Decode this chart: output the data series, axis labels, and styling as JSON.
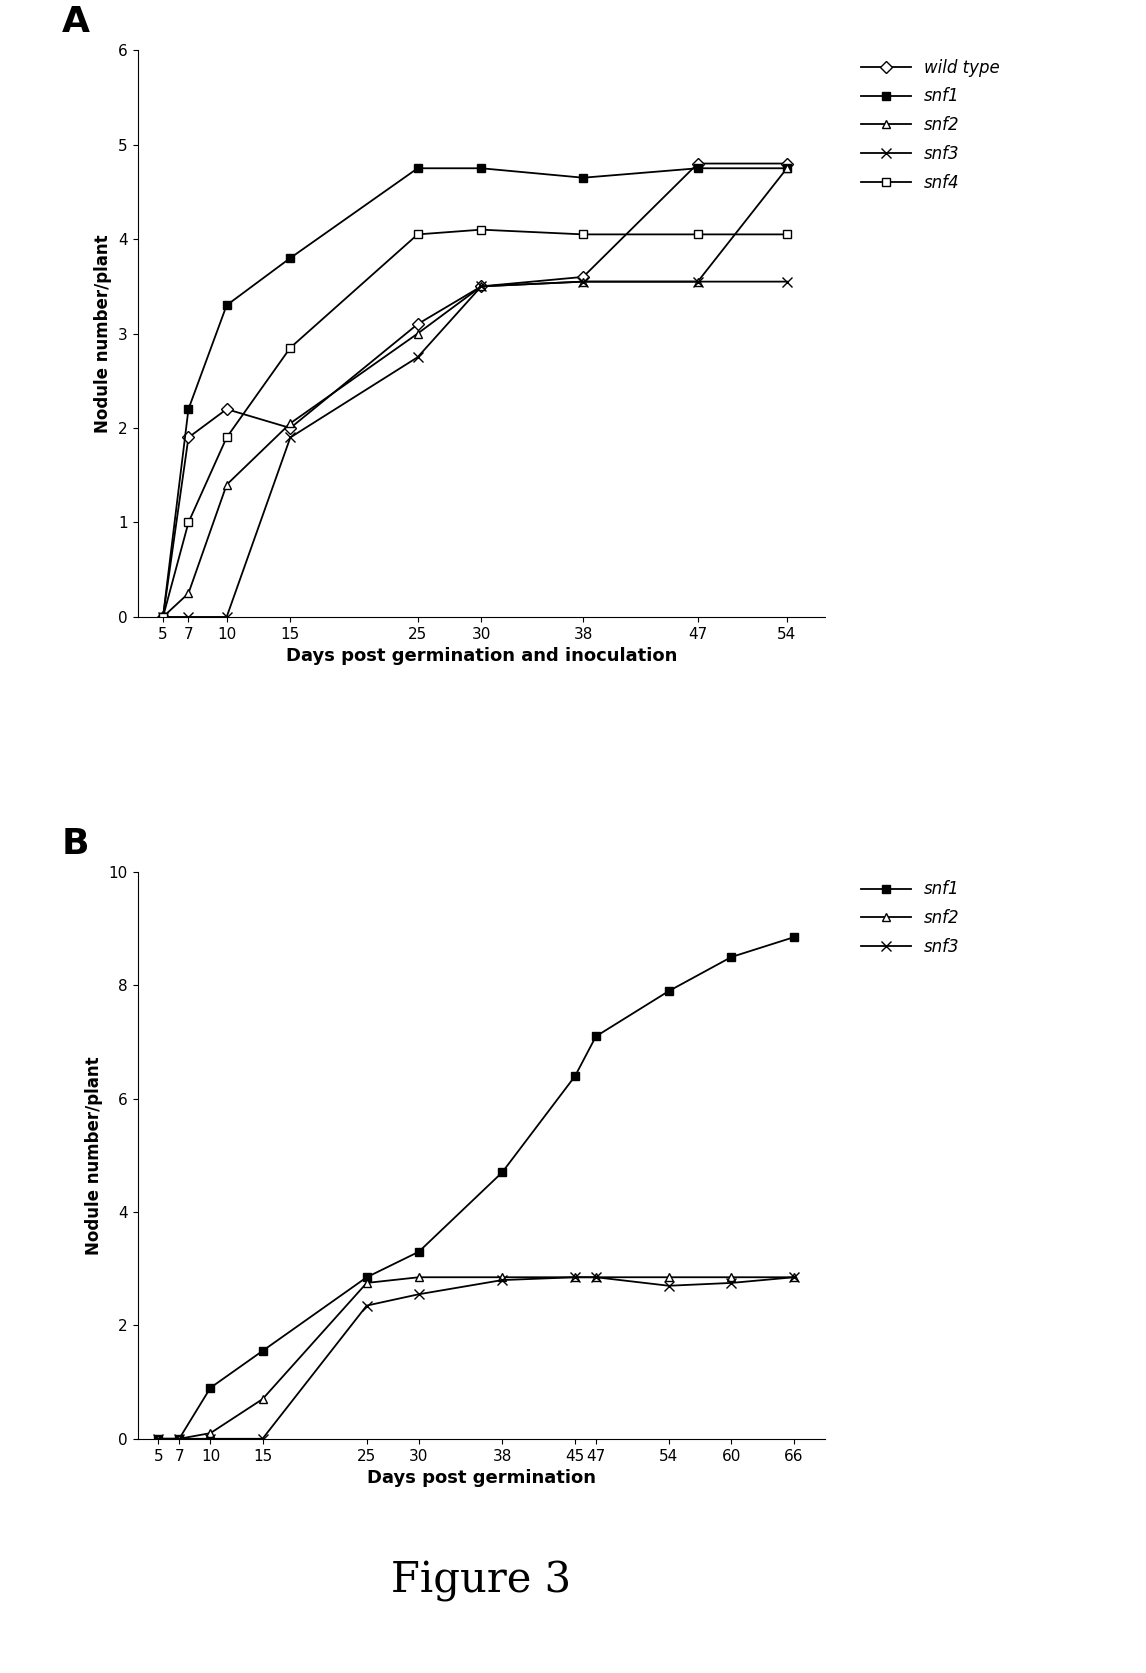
{
  "panel_A": {
    "title": "A",
    "xlabel": "Days post germination and inoculation",
    "ylabel": "Nodule number/plant",
    "xlim": [
      3,
      57
    ],
    "ylim": [
      0,
      6
    ],
    "yticks": [
      0,
      1,
      2,
      3,
      4,
      5,
      6
    ],
    "xticks": [
      5,
      7,
      10,
      15,
      25,
      30,
      38,
      47,
      54
    ],
    "series": [
      {
        "label": "wild type",
        "x": [
          5,
          7,
          10,
          15,
          25,
          30,
          38,
          47,
          54
        ],
        "y": [
          0,
          1.9,
          2.2,
          2.0,
          3.1,
          3.5,
          3.6,
          4.8,
          4.8
        ],
        "color": "#000000",
        "marker": "D",
        "marker_face": "white",
        "linestyle": "-",
        "markersize": 6
      },
      {
        "label": "snf1",
        "x": [
          5,
          7,
          10,
          15,
          25,
          30,
          38,
          47,
          54
        ],
        "y": [
          0,
          2.2,
          3.3,
          3.8,
          4.75,
          4.75,
          4.65,
          4.75,
          4.75
        ],
        "color": "#000000",
        "marker": "s",
        "marker_face": "black",
        "linestyle": "-",
        "markersize": 6
      },
      {
        "label": "snf2",
        "x": [
          5,
          7,
          10,
          15,
          25,
          30,
          38,
          47,
          54
        ],
        "y": [
          0,
          0.25,
          1.4,
          2.05,
          3.0,
          3.5,
          3.55,
          3.55,
          4.75
        ],
        "color": "#000000",
        "marker": "^",
        "marker_face": "white",
        "linestyle": "-",
        "markersize": 6
      },
      {
        "label": "snf3",
        "x": [
          5,
          7,
          10,
          15,
          25,
          30,
          38,
          47,
          54
        ],
        "y": [
          0,
          0.0,
          0.0,
          1.9,
          2.75,
          3.5,
          3.55,
          3.55,
          3.55
        ],
        "color": "#000000",
        "marker": "x",
        "marker_face": "black",
        "linestyle": "-",
        "markersize": 7
      },
      {
        "label": "snf4",
        "x": [
          5,
          7,
          10,
          15,
          25,
          30,
          38,
          47,
          54
        ],
        "y": [
          0,
          1.0,
          1.9,
          2.85,
          4.05,
          4.1,
          4.05,
          4.05,
          4.05
        ],
        "color": "#000000",
        "marker": "s",
        "marker_face": "white",
        "linestyle": "-",
        "markersize": 6
      }
    ]
  },
  "panel_B": {
    "title": "B",
    "xlabel": "Days post germination",
    "ylabel": "Nodule number/plant",
    "xlim": [
      3,
      69
    ],
    "ylim": [
      0,
      10
    ],
    "yticks": [
      0,
      2,
      4,
      6,
      8,
      10
    ],
    "xticks": [
      5,
      7,
      10,
      15,
      25,
      30,
      38,
      45,
      47,
      54,
      60,
      66
    ],
    "series": [
      {
        "label": "snf1",
        "x": [
          5,
          7,
          10,
          15,
          25,
          30,
          38,
          45,
          47,
          54,
          60,
          66
        ],
        "y": [
          0,
          0.0,
          0.9,
          1.55,
          2.85,
          3.3,
          4.7,
          6.4,
          7.1,
          7.9,
          8.5,
          8.85
        ],
        "color": "#000000",
        "marker": "s",
        "marker_face": "black",
        "linestyle": "-",
        "markersize": 6
      },
      {
        "label": "snf2",
        "x": [
          5,
          7,
          10,
          15,
          25,
          30,
          38,
          45,
          47,
          54,
          60,
          66
        ],
        "y": [
          0,
          0.0,
          0.1,
          0.7,
          2.75,
          2.85,
          2.85,
          2.85,
          2.85,
          2.85,
          2.85,
          2.85
        ],
        "color": "#000000",
        "marker": "^",
        "marker_face": "white",
        "linestyle": "-",
        "markersize": 6
      },
      {
        "label": "snf3",
        "x": [
          5,
          7,
          10,
          15,
          25,
          30,
          38,
          45,
          47,
          54,
          60,
          66
        ],
        "y": [
          0,
          0.0,
          0.0,
          0.0,
          2.35,
          2.55,
          2.8,
          2.85,
          2.85,
          2.7,
          2.75,
          2.85
        ],
        "color": "#000000",
        "marker": "x",
        "marker_face": "black",
        "linestyle": "-",
        "markersize": 7
      }
    ]
  },
  "figure_label": "Figure 3",
  "background_color": "#ffffff"
}
